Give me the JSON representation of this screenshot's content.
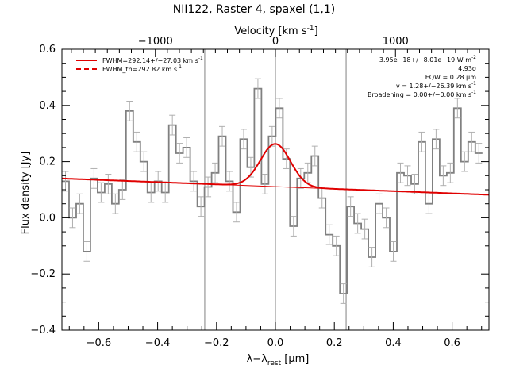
{
  "chart_data": {
    "type": "line",
    "title": "NII122, Raster 4, spaxel (1,1)",
    "xlabel": "λ−λ",
    "xlabel_sub": "rest",
    "xlabel_unit": " [μm]",
    "ylabel": "Flux density [Jy]",
    "top_axis_label": "Velocity [km s",
    "top_axis_label_sup": "-1",
    "top_axis_label_end": "]",
    "xlim": [
      -0.725,
      0.725
    ],
    "ylim": [
      -0.4,
      0.6
    ],
    "x_ticks": [
      -0.6,
      -0.4,
      -0.2,
      0.0,
      0.2,
      0.4,
      0.6
    ],
    "x_tick_labels": [
      "−0.6",
      "−0.4",
      "−0.2",
      "0.0",
      "0.2",
      "0.4",
      "0.6"
    ],
    "y_ticks": [
      -0.4,
      -0.2,
      0.0,
      0.2,
      0.4,
      0.6
    ],
    "y_tick_labels": [
      "−0.4",
      "−0.2",
      "0.0",
      "0.2",
      "0.4",
      "0.6"
    ],
    "top_ticks": [
      -1000,
      0,
      1000
    ],
    "top_tick_labels": [
      "−1000",
      "0",
      "1000"
    ],
    "velocity_per_micron": 2453,
    "vertical_lines": [
      -0.24,
      0.0,
      0.24
    ],
    "bin_width": 0.0242,
    "spectrum": {
      "x": [
        -0.7129,
        -0.6887,
        -0.6645,
        -0.6403,
        -0.6161,
        -0.5919,
        -0.5677,
        -0.5435,
        -0.5193,
        -0.4951,
        -0.4709,
        -0.4467,
        -0.4225,
        -0.3983,
        -0.3741,
        -0.3499,
        -0.3257,
        -0.3015,
        -0.2773,
        -0.2531,
        -0.2289,
        -0.2047,
        -0.1805,
        -0.1563,
        -0.1321,
        -0.1079,
        -0.0837,
        -0.0595,
        -0.0353,
        -0.0111,
        0.0131,
        0.0373,
        0.0615,
        0.0857,
        0.1099,
        0.1341,
        0.1583,
        0.1825,
        0.2067,
        0.2309,
        0.2551,
        0.2793,
        0.3035,
        0.3277,
        0.3519,
        0.3761,
        0.4003,
        0.4245,
        0.4487,
        0.4729,
        0.4971,
        0.5213,
        0.5455,
        0.5697,
        0.5939,
        0.6181,
        0.6423,
        0.6665,
        0.6907
      ],
      "y": [
        0.13,
        0.0,
        0.05,
        -0.12,
        0.14,
        0.09,
        0.12,
        0.05,
        0.1,
        0.38,
        0.27,
        0.2,
        0.09,
        0.13,
        0.09,
        0.33,
        0.23,
        0.25,
        0.13,
        0.04,
        0.11,
        0.16,
        0.29,
        0.13,
        0.02,
        0.28,
        0.18,
        0.46,
        0.12,
        0.29,
        0.39,
        0.21,
        -0.03,
        0.14,
        0.16,
        0.22,
        0.07,
        -0.06,
        -0.1,
        -0.27,
        0.04,
        -0.02,
        -0.04,
        -0.14,
        0.05,
        0.0,
        -0.12,
        0.16,
        0.15,
        0.12,
        0.27,
        0.05,
        0.28,
        0.15,
        0.16,
        0.39,
        0.2,
        0.27,
        0.23
      ],
      "error": 0.035,
      "color": "#808080"
    },
    "fit": {
      "baseline_at_min": 0.14,
      "baseline_at_max": 0.082,
      "gauss_amplitude": 0.152,
      "gauss_center": 0.0,
      "gauss_sigma": 0.051,
      "color": "#e00000"
    },
    "legend": [
      {
        "label": "FWHM=292.14+/−27.03 km s",
        "sup": "-1",
        "style": "solid",
        "color": "#e00000"
      },
      {
        "label": "FWHM_th=292.82 km s",
        "sup": "-1",
        "style": "dashed",
        "color": "#e00000"
      }
    ],
    "annotations": [
      {
        "text": "3.95e−18+/−8.01e−19 W m",
        "sup": "-2"
      },
      {
        "text": "4.93σ",
        "sup": ""
      },
      {
        "text": "EQW = 0.28 μm",
        "sup": ""
      },
      {
        "text": "v = 1.28+/−26.39 km s",
        "sup": "-1"
      },
      {
        "text": "Broadening = 0.00+/−0.00 km s",
        "sup": "-1"
      }
    ]
  }
}
